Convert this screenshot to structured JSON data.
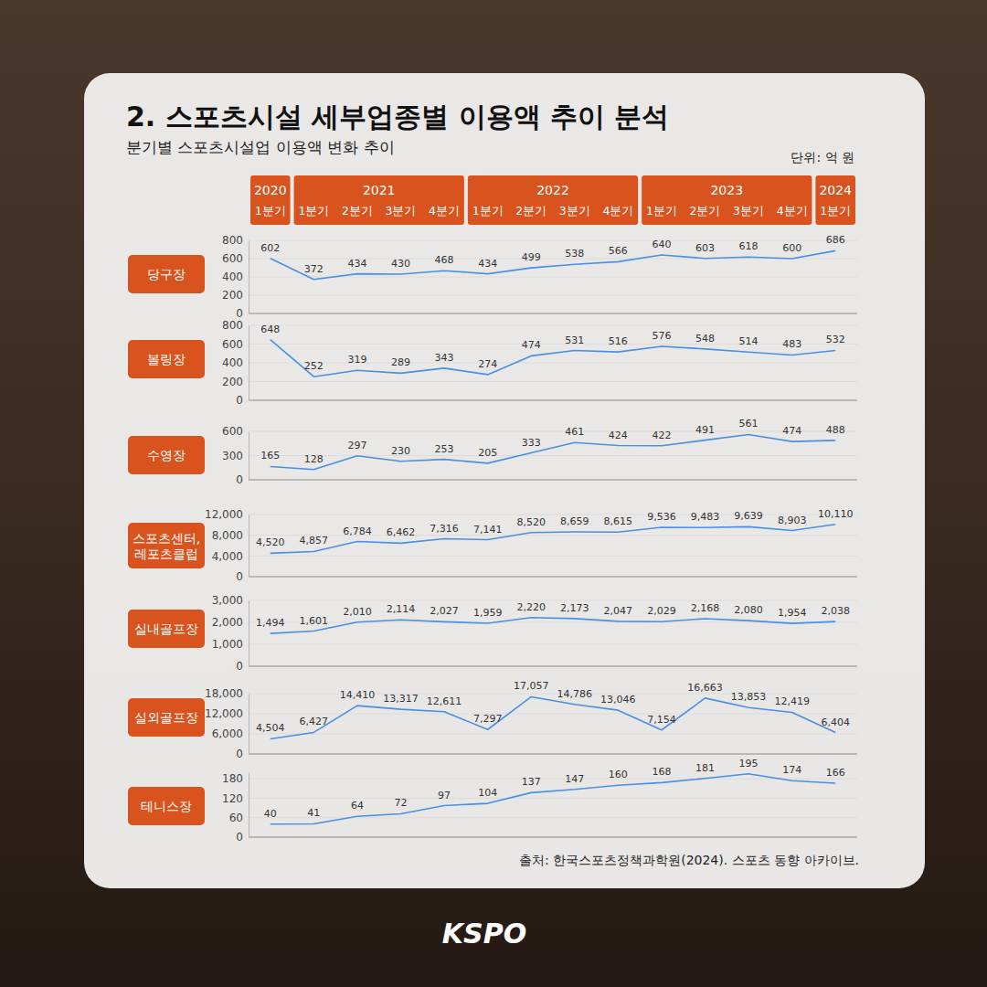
{
  "title": "2. 스포츠시설 세부업종별 이용액 추이 분석",
  "subtitle": "분기별 스포츠시설업 이용액 변화 추이",
  "unit": "단위: 억 원",
  "header": {
    "groups": [
      {
        "year": "2020",
        "quarters": [
          "1분기"
        ]
      },
      {
        "year": "2021",
        "quarters": [
          "1분기",
          "2분기",
          "3분기",
          "4분기"
        ]
      },
      {
        "year": "2022",
        "quarters": [
          "1분기",
          "2분기",
          "3분기",
          "4분기"
        ]
      },
      {
        "year": "2023",
        "quarters": [
          "1분기",
          "2분기",
          "3분기",
          "4분기"
        ]
      },
      {
        "year": "2024",
        "quarters": [
          "1분기"
        ]
      }
    ]
  },
  "source": "출처: 한국스포츠정책과학원(2024). 스포츠 동향 아카이브.",
  "logo": "KSPO",
  "chart_data": [
    {
      "type": "line",
      "title": "당구장",
      "color": "#4a90e2",
      "categories": [
        null,
        null,
        null,
        null,
        null,
        null,
        null,
        null,
        null,
        null,
        null,
        null,
        null,
        null
      ],
      "values": [
        602,
        372,
        434,
        430,
        468,
        434,
        499,
        538,
        566,
        640,
        603,
        618,
        600,
        686
      ],
      "ylim": [
        0,
        800
      ],
      "yticks": [
        0,
        200,
        400,
        600,
        800
      ],
      "grid": true,
      "data_labels": true,
      "tick_labels": "y"
    },
    {
      "type": "line",
      "title": "볼링장",
      "color": "#4a90e2",
      "categories": [
        null,
        null,
        null,
        null,
        null,
        null,
        null,
        null,
        null,
        null,
        null,
        null,
        null,
        null
      ],
      "values": [
        648,
        252,
        319,
        289,
        343,
        274,
        474,
        531,
        516,
        576,
        548,
        514,
        483,
        532
      ],
      "ylim": [
        0,
        800
      ],
      "yticks": [
        0,
        200,
        400,
        600,
        800
      ],
      "grid": true,
      "data_labels": true,
      "tick_labels": "y"
    },
    {
      "type": "line",
      "title": "수영장",
      "color": "#4a90e2",
      "categories": [
        null,
        null,
        null,
        null,
        null,
        null,
        null,
        null,
        null,
        null,
        null,
        null,
        null,
        null
      ],
      "values": [
        165,
        128,
        297,
        230,
        253,
        205,
        333,
        461,
        424,
        422,
        491,
        561,
        474,
        488
      ],
      "ylim": [
        0,
        600
      ],
      "yticks": [
        0,
        300,
        600
      ],
      "grid": true,
      "data_labels": true,
      "tick_labels": "y"
    },
    {
      "type": "line",
      "title": "스포츠센터, 레포츠클럽",
      "color": "#4a90e2",
      "categories": [
        null,
        null,
        null,
        null,
        null,
        null,
        null,
        null,
        null,
        null,
        null,
        null,
        null,
        null
      ],
      "values": [
        4520,
        4857,
        6784,
        6462,
        7316,
        7141,
        8520,
        8659,
        8615,
        9536,
        9483,
        9639,
        8903,
        10110
      ],
      "value_labels": [
        "4,520",
        "4,857",
        "6,784",
        "6,462",
        "7,316",
        "7,141",
        "8,520",
        "8,659",
        "8,615",
        "9,536",
        "9,483",
        "9,639",
        "8,903",
        "10,110"
      ],
      "ylim": [
        0,
        12000
      ],
      "yticks": [
        0,
        {
          "value": 4000,
          "label": "4,000"
        },
        {
          "value": 8000,
          "label": "8,000"
        },
        {
          "value": 12000,
          "label": "12,000"
        }
      ],
      "grid": true,
      "data_labels": true,
      "tick_labels": "y"
    },
    {
      "type": "line",
      "title": "실내골프장",
      "color": "#4a90e2",
      "categories": [
        null,
        null,
        null,
        null,
        null,
        null,
        null,
        null,
        null,
        null,
        null,
        null,
        null,
        null
      ],
      "values": [
        1494,
        1601,
        2010,
        2114,
        2027,
        1959,
        2220,
        2173,
        2047,
        2029,
        2168,
        2080,
        1954,
        2038
      ],
      "value_labels": [
        "1,494",
        "1,601",
        "2,010",
        "2,114",
        "2,027",
        "1,959",
        "2,220",
        "2,173",
        "2,047",
        "2,029",
        "2,168",
        "2,080",
        "1,954",
        "2,038"
      ],
      "ylim": [
        0,
        3000
      ],
      "yticks": [
        0,
        {
          "value": 1000,
          "label": "1,000"
        },
        {
          "value": 2000,
          "label": "2,000"
        },
        {
          "value": 3000,
          "label": "3,000"
        }
      ],
      "grid": true,
      "data_labels": true,
      "tick_labels": "y"
    },
    {
      "type": "line",
      "title": "실외골프장",
      "color": "#4a90e2",
      "categories": [
        null,
        null,
        null,
        null,
        null,
        null,
        null,
        null,
        null,
        null,
        null,
        null,
        null,
        null
      ],
      "values": [
        4504,
        6427,
        14410,
        13317,
        12611,
        7297,
        17057,
        14786,
        13046,
        7154,
        16663,
        13853,
        12419,
        6404
      ],
      "value_labels": [
        "4,504",
        "6,427",
        "14,410",
        "13,317",
        "12,611",
        "7,297",
        "17,057",
        "14,786",
        "13,046",
        "7,154",
        "16,663",
        "13,853",
        "12,419",
        "6,404"
      ],
      "ylim": [
        0,
        18000
      ],
      "yticks": [
        0,
        {
          "value": 6000,
          "label": "6,000"
        },
        {
          "value": 12000,
          "label": "12,000"
        },
        {
          "value": 18000,
          "label": "18,000"
        }
      ],
      "grid": true,
      "data_labels": true,
      "tick_labels": "y"
    },
    {
      "type": "line",
      "title": "테니스장",
      "color": "#4a90e2",
      "categories": [
        null,
        null,
        null,
        null,
        null,
        null,
        null,
        null,
        null,
        null,
        null,
        null,
        null,
        null
      ],
      "values": [
        40,
        41,
        64,
        72,
        97,
        104,
        137,
        147,
        160,
        168,
        181,
        195,
        174,
        166
      ],
      "ylim": [
        0,
        200
      ],
      "yticks": [
        0,
        60,
        120,
        180
      ],
      "grid": true,
      "data_labels": true,
      "tick_labels": "y"
    }
  ]
}
